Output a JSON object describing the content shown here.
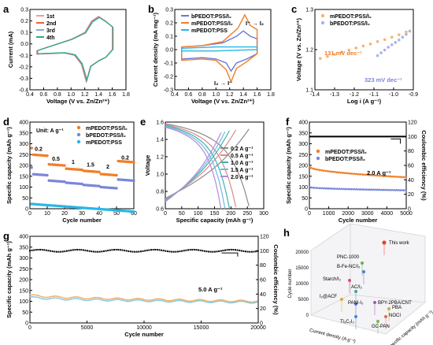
{
  "chart_data": [
    {
      "id": "a",
      "type": "line",
      "panel_label": "a",
      "xlabel": "Voltage (V vs. Zn/Zn²⁺)",
      "ylabel": "Current (mA)",
      "xlim": [
        0.4,
        1.8
      ],
      "ylim": [
        -0.4,
        0.3
      ],
      "xticks": [
        "0.4",
        "0.6",
        "0.8",
        "1.0",
        "1.2",
        "1.4",
        "1.6",
        "1.8"
      ],
      "yticks": [
        "-0.4",
        "-0.3",
        "-0.2",
        "-0.1",
        "0.0",
        "0.1",
        "0.2",
        "0.3"
      ],
      "legend": "top-left",
      "series": [
        {
          "name": "1st",
          "color": "#e8a0a0"
        },
        {
          "name": "2nd",
          "color": "#e8603c"
        },
        {
          "name": "3rd",
          "color": "#8fa3d6"
        },
        {
          "name": "4th",
          "color": "#2aa889"
        }
      ],
      "cycle": [
        [
          0.5,
          -0.09
        ],
        [
          0.7,
          -0.085
        ],
        [
          0.9,
          -0.08
        ],
        [
          1.05,
          -0.1
        ],
        [
          1.15,
          -0.18
        ],
        [
          1.22,
          -0.33
        ],
        [
          1.28,
          -0.2
        ],
        [
          1.4,
          -0.15
        ],
        [
          1.5,
          -0.12
        ],
        [
          1.6,
          -0.05
        ],
        [
          1.6,
          0.15
        ],
        [
          1.5,
          0.2
        ],
        [
          1.4,
          0.24
        ],
        [
          1.3,
          0.2
        ],
        [
          1.2,
          0.1
        ],
        [
          1.0,
          0.04
        ],
        [
          0.8,
          0.0
        ],
        [
          0.6,
          -0.04
        ],
        [
          0.5,
          -0.06
        ]
      ]
    },
    {
      "id": "b",
      "type": "line",
      "panel_label": "b",
      "xlabel": "Voltage (V vs. Zn/Zn²⁺)",
      "ylabel": "Current density (mA mg⁻¹)",
      "xlim": [
        0.4,
        1.8
      ],
      "ylim": [
        -0.3,
        0.3
      ],
      "xticks": [
        "0.4",
        "0.6",
        "0.8",
        "1.0",
        "1.2",
        "1.4",
        "1.6",
        "1.8"
      ],
      "yticks": [
        "-0.3",
        "-0.2",
        "-0.1",
        "0.0",
        "0.1",
        "0.2",
        "0.3"
      ],
      "legend": "top-left",
      "annotations": [
        "I⁻ → I₂",
        "I₂ → I⁻"
      ],
      "series": [
        {
          "name": "bPEDOT:PSS/I₂",
          "color": "#6d77d6",
          "points": [
            [
              0.5,
              -0.07
            ],
            [
              0.8,
              -0.06
            ],
            [
              1.0,
              -0.07
            ],
            [
              1.15,
              -0.1
            ],
            [
              1.22,
              -0.16
            ],
            [
              1.3,
              -0.1
            ],
            [
              1.45,
              -0.07
            ],
            [
              1.6,
              -0.03
            ],
            [
              1.6,
              0.08
            ],
            [
              1.5,
              0.1
            ],
            [
              1.4,
              0.14
            ],
            [
              1.3,
              0.1
            ],
            [
              1.1,
              0.05
            ],
            [
              0.8,
              0.03
            ],
            [
              0.5,
              0.02
            ]
          ]
        },
        {
          "name": "mPEDOT:PSS/I₂",
          "color": "#f07e26",
          "points": [
            [
              0.5,
              -0.08
            ],
            [
              0.8,
              -0.07
            ],
            [
              1.0,
              -0.08
            ],
            [
              1.15,
              -0.15
            ],
            [
              1.22,
              -0.24
            ],
            [
              1.3,
              -0.14
            ],
            [
              1.45,
              -0.09
            ],
            [
              1.6,
              -0.03
            ],
            [
              1.6,
              0.15
            ],
            [
              1.5,
              0.18
            ],
            [
              1.42,
              0.26
            ],
            [
              1.32,
              0.16
            ],
            [
              1.1,
              0.06
            ],
            [
              0.8,
              0.03
            ],
            [
              0.5,
              0.02
            ]
          ]
        },
        {
          "name": "mPEDOT:PSS",
          "color": "#29b6e6",
          "points": [
            [
              0.5,
              -0.01
            ],
            [
              1.0,
              -0.01
            ],
            [
              1.6,
              0.0
            ],
            [
              1.6,
              0.02
            ],
            [
              1.0,
              0.02
            ],
            [
              0.5,
              0.01
            ]
          ]
        }
      ]
    },
    {
      "id": "c",
      "type": "scatter",
      "panel_label": "c",
      "xlabel": "Log i (A g⁻¹)",
      "ylabel": "Voltage (V vs. Zn/Zn²⁺)",
      "xlim": [
        -1.45,
        -0.9
      ],
      "ylim": [
        1.1,
        1.3
      ],
      "xticks": [
        "-1.4",
        "-1.3",
        "-1.2",
        "-1.1",
        "-1.0",
        "-0.9"
      ],
      "yticks": [
        "1.1",
        "1.2",
        "1.3"
      ],
      "legend": "top-left",
      "annotations": [
        "131 mV dec⁻¹",
        "323 mV dec⁻¹"
      ],
      "series": [
        {
          "name": "mPEDOT:PSS/I₂",
          "color": "#f5b377",
          "x": [
            -1.42,
            -1.38,
            -1.34,
            -1.3,
            -1.26,
            -1.22,
            -1.18,
            -1.14,
            -1.1,
            -1.06,
            -1.02,
            -0.98,
            -0.94
          ],
          "y": [
            1.178,
            1.183,
            1.188,
            1.194,
            1.199,
            1.204,
            1.209,
            1.214,
            1.22,
            1.225,
            1.231,
            1.237,
            1.244
          ]
        },
        {
          "name": "bPEDOT:PSS/I₂",
          "color": "#a8b5e6",
          "x": [
            -1.1,
            -1.08,
            -1.06,
            -1.04,
            -1.02,
            -1.0,
            -0.98,
            -0.96,
            -0.94,
            -0.92
          ],
          "y": [
            1.185,
            1.192,
            1.199,
            1.206,
            1.212,
            1.218,
            1.224,
            1.231,
            1.238,
            1.246
          ]
        }
      ]
    },
    {
      "id": "d",
      "type": "scatter",
      "panel_label": "d",
      "xlabel": "Cycle number",
      "ylabel": "Specific capacity (mAh g⁻¹)",
      "xlim": [
        0,
        60
      ],
      "ylim": [
        0,
        400
      ],
      "xticks": [
        "0",
        "10",
        "20",
        "30",
        "40",
        "50",
        "60"
      ],
      "yticks": [
        "0",
        "50",
        "100",
        "150",
        "200",
        "250",
        "300",
        "350",
        "400"
      ],
      "legend": "top-right",
      "unit_label": "Unit: A g⁻¹",
      "rate_labels": [
        {
          "text": "0.2",
          "x": 5,
          "y": 268
        },
        {
          "text": "0.5",
          "x": 15,
          "y": 222
        },
        {
          "text": "1",
          "x": 25,
          "y": 208
        },
        {
          "text": "1.5",
          "x": 35,
          "y": 194
        },
        {
          "text": "2",
          "x": 45,
          "y": 185
        },
        {
          "text": "0.2",
          "x": 55,
          "y": 228
        }
      ],
      "series": [
        {
          "name": "mPEDOT:PSS/I₂",
          "color": "#f07e26",
          "segments": [
            [
              1,
              10,
              250
            ],
            [
              11,
              20,
              205
            ],
            [
              21,
              30,
              185
            ],
            [
              31,
              40,
              175
            ],
            [
              41,
              50,
              160
            ],
            [
              51,
              60,
              220
            ]
          ]
        },
        {
          "name": "bPEDOT:PSS/I₂",
          "color": "#7b86d9",
          "segments": [
            [
              1,
              10,
              160
            ],
            [
              11,
              20,
              130
            ],
            [
              21,
              30,
              120
            ],
            [
              31,
              40,
              110
            ],
            [
              41,
              50,
              100
            ],
            [
              51,
              60,
              135
            ]
          ]
        },
        {
          "name": "mPEDOT:PSS",
          "color": "#29b6e6",
          "segments": [
            [
              1,
              60,
              22
            ]
          ]
        }
      ]
    },
    {
      "id": "e",
      "type": "line",
      "panel_label": "e",
      "xlabel": "Specific capacity (mAh g⁻¹)",
      "ylabel": "Voltage",
      "xlim": [
        0,
        300
      ],
      "ylim": [
        0.6,
        1.6
      ],
      "xticks": [
        "0",
        "50",
        "100",
        "150",
        "200",
        "250",
        "300"
      ],
      "yticks": [
        "0.6",
        "0.8",
        "1.0",
        "1.2",
        "1.4",
        "1.6"
      ],
      "legend": "right",
      "series": [
        {
          "name": "0.2 A g⁻¹",
          "color": "#8a8a8a",
          "capacity": 255
        },
        {
          "name": "0.5 A g⁻¹",
          "color": "#e0878c",
          "capacity": 215
        },
        {
          "name": "1.0 A g⁻¹",
          "color": "#3bb5a8",
          "capacity": 195
        },
        {
          "name": "1.5 A g⁻¹",
          "color": "#6fb7e6",
          "capacity": 182
        },
        {
          "name": "2.0 A g⁻¹",
          "color": "#b48ad6",
          "capacity": 170
        }
      ]
    },
    {
      "id": "f",
      "type": "scatter",
      "panel_label": "f",
      "xlabel": "Cycle number",
      "ylabel": "Specific capacity (mAh g⁻¹)",
      "ylabel_right": "Coulombic efficiency (%)",
      "xlim": [
        0,
        5000
      ],
      "ylim": [
        0,
        400
      ],
      "ylim_right": [
        0,
        120
      ],
      "xticks": [
        "0",
        "1000",
        "2000",
        "3000",
        "4000",
        "5000"
      ],
      "yticks": [
        "0",
        "50",
        "100",
        "150",
        "200",
        "250",
        "300",
        "350",
        "400"
      ],
      "yticks_right": [
        "0",
        "20",
        "40",
        "60",
        "80",
        "100",
        "120"
      ],
      "legend": "middle-left",
      "annotation": "2.0 A g⁻¹",
      "series": [
        {
          "name": "mPEDOT:PSS/I₂",
          "color": "#f07e26",
          "start": 195,
          "end": 145
        },
        {
          "name": "bPEDOT:PSS/I₂",
          "color": "#7b86d9",
          "start": 100,
          "end": 85
        },
        {
          "name": "Coulombic efficiency",
          "color": "#000000",
          "value": 100
        }
      ]
    },
    {
      "id": "g",
      "type": "scatter",
      "panel_label": "g",
      "xlabel": "Cycle number",
      "ylabel": "Specific capacity (mAh g⁻¹)",
      "ylabel_right": "Coulombic efficiency (%)",
      "xlim": [
        0,
        20000
      ],
      "ylim": [
        0,
        400
      ],
      "ylim_right": [
        0,
        120
      ],
      "xticks": [
        "0",
        "5000",
        "10000",
        "15000",
        "20000"
      ],
      "yticks": [
        "0",
        "50",
        "100",
        "150",
        "200",
        "250",
        "300",
        "350",
        "400"
      ],
      "yticks_right": [
        "0",
        "20",
        "40",
        "60",
        "80",
        "100",
        "120"
      ],
      "annotation": "5.0 A g⁻¹",
      "series": [
        {
          "name": "Specific capacity",
          "color": "#f5a454",
          "start": 130,
          "end": 100
        },
        {
          "name": "Specific capacity 2",
          "color": "#78c5d9",
          "start": 120,
          "end": 95
        },
        {
          "name": "Coulombic efficiency",
          "color": "#000000",
          "value": 100
        }
      ]
    },
    {
      "id": "h",
      "type": "scatter",
      "panel_label": "h",
      "xlabel": "Specific capacity (mAh g⁻¹)",
      "ylabel": "Current density (A g⁻¹)",
      "zlabel": "Cycle number",
      "zticks": [
        "0",
        "5000",
        "10000",
        "15000",
        "20000"
      ],
      "points": [
        {
          "label": "This work",
          "color": "#e8443a"
        },
        {
          "label": "PNC-1000",
          "color": "#6ab04c"
        },
        {
          "label": "B-Fe-NC/I₂",
          "color": "#4a7fd6"
        },
        {
          "label": "Starch/I₂",
          "color": "#d64a8a"
        },
        {
          "label": "AC/I₂",
          "color": "#3aa4a8"
        },
        {
          "label": "BPY-2PBA/CNT",
          "color": "#9b59b6"
        },
        {
          "label": "I₂@ACF",
          "color": "#e6a23a"
        },
        {
          "label": "PANI-I₂",
          "color": "#5a6dd6"
        },
        {
          "label": "PBA",
          "color": "#c0b23a"
        },
        {
          "label": "NOCI",
          "color": "#e06a5a"
        },
        {
          "label": "Ti₃C₂I₂",
          "color": "#3a8ad6"
        },
        {
          "label": "GC-PAN",
          "color": "#7ab84a"
        }
      ]
    }
  ]
}
